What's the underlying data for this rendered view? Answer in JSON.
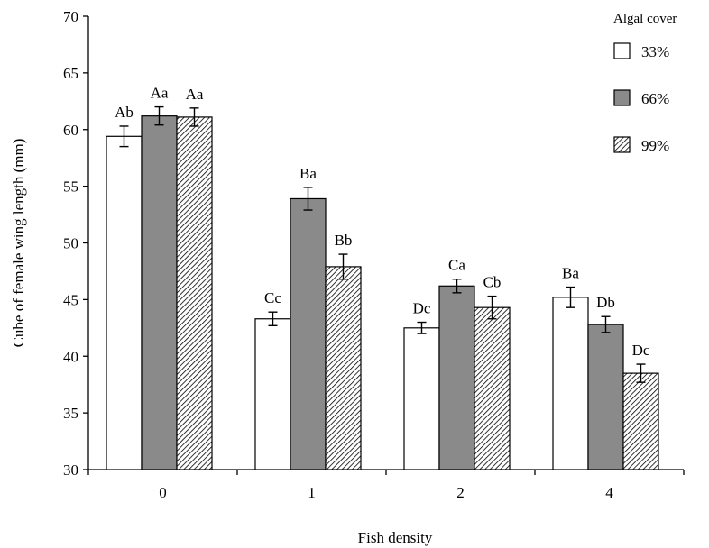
{
  "chart_data": {
    "type": "bar",
    "xlabel": "Fish density",
    "ylabel": "Cube of female wing length (mm)",
    "ylim": [
      30,
      70
    ],
    "yticks": [
      30,
      35,
      40,
      45,
      50,
      55,
      60,
      65,
      70
    ],
    "categories": [
      "0",
      "1",
      "2",
      "4"
    ],
    "legend": {
      "title": "Algal cover",
      "placement": "top-right"
    },
    "grid": false,
    "series": [
      {
        "name": "33%",
        "fill": "white",
        "values": [
          59.4,
          43.3,
          42.5,
          45.2
        ],
        "errors": [
          0.9,
          0.6,
          0.5,
          0.9
        ],
        "labels": [
          "Ab",
          "Cc",
          "Dc",
          "Ba"
        ]
      },
      {
        "name": "66%",
        "fill": "gray",
        "values": [
          61.2,
          53.9,
          46.2,
          42.8
        ],
        "errors": [
          0.8,
          1.0,
          0.6,
          0.7
        ],
        "labels": [
          "Aa",
          "Ba",
          "Ca",
          "Db"
        ]
      },
      {
        "name": "99%",
        "fill": "hatch",
        "values": [
          61.1,
          47.9,
          44.3,
          38.5
        ],
        "errors": [
          0.8,
          1.1,
          1.0,
          0.8
        ],
        "labels": [
          "Aa",
          "Bb",
          "Cb",
          "Dc"
        ]
      }
    ]
  },
  "colors": {
    "gray": "#8a8a8a",
    "white": "#ffffff",
    "stroke": "#000000"
  }
}
